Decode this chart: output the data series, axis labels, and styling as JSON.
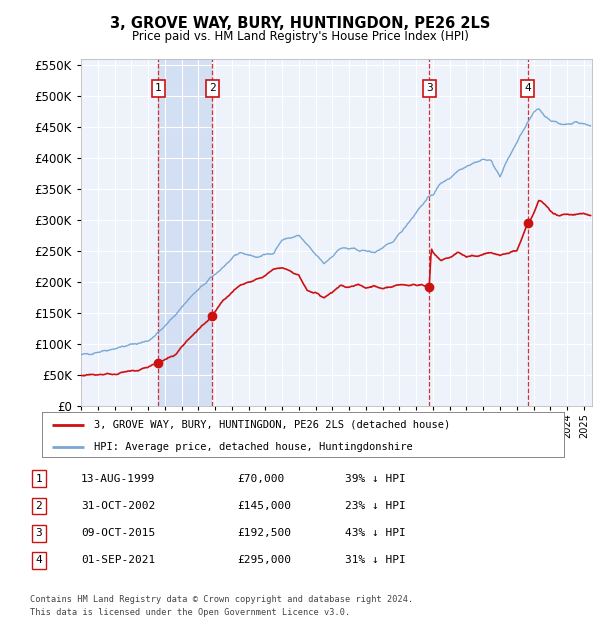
{
  "title": "3, GROVE WAY, BURY, HUNTINGDON, PE26 2LS",
  "subtitle": "Price paid vs. HM Land Registry's House Price Index (HPI)",
  "ylim": [
    0,
    560000
  ],
  "yticks": [
    0,
    50000,
    100000,
    150000,
    200000,
    250000,
    300000,
    350000,
    400000,
    450000,
    500000,
    550000
  ],
  "background_color": "#ffffff",
  "plot_bg_color": "#eef2fb",
  "grid_color": "#ffffff",
  "hpi_color": "#7aa8d4",
  "price_color": "#cc1111",
  "sale_points": [
    {
      "date_num": 1999.617,
      "price": 70000,
      "label": "1"
    },
    {
      "date_num": 2002.833,
      "price": 145000,
      "label": "2"
    },
    {
      "date_num": 2015.775,
      "price": 192500,
      "label": "3"
    },
    {
      "date_num": 2021.667,
      "price": 295000,
      "label": "4"
    }
  ],
  "vline_color": "#cc1111",
  "shaded_pairs": [
    [
      0,
      1
    ]
  ],
  "shade_color": "#c8d8f0",
  "annotation_box_color": "#ffffff",
  "annotation_box_edge": "#cc1111",
  "legend_label_price": "3, GROVE WAY, BURY, HUNTINGDON, PE26 2LS (detached house)",
  "legend_label_hpi": "HPI: Average price, detached house, Huntingdonshire",
  "table_rows": [
    {
      "num": "1",
      "date": "13-AUG-1999",
      "price": "£70,000",
      "hpi": "39% ↓ HPI"
    },
    {
      "num": "2",
      "date": "31-OCT-2002",
      "price": "£145,000",
      "hpi": "23% ↓ HPI"
    },
    {
      "num": "3",
      "date": "09-OCT-2015",
      "price": "£192,500",
      "hpi": "43% ↓ HPI"
    },
    {
      "num": "4",
      "date": "01-SEP-2021",
      "price": "£295,000",
      "hpi": "31% ↓ HPI"
    }
  ],
  "footer": "Contains HM Land Registry data © Crown copyright and database right 2024.\nThis data is licensed under the Open Government Licence v3.0.",
  "xstart": 1995.0,
  "xend": 2025.5
}
